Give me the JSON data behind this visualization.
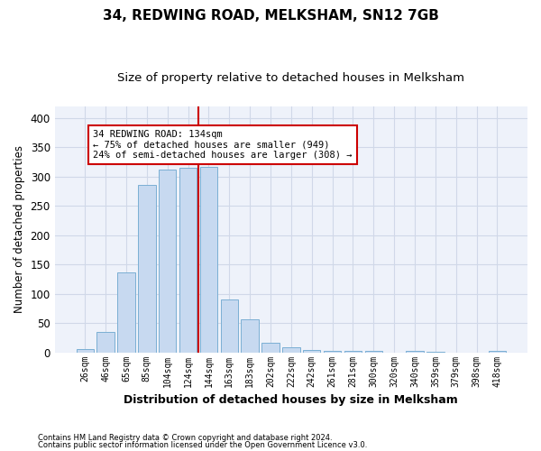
{
  "title": "34, REDWING ROAD, MELKSHAM, SN12 7GB",
  "subtitle": "Size of property relative to detached houses in Melksham",
  "xlabel": "Distribution of detached houses by size in Melksham",
  "ylabel": "Number of detached properties",
  "categories": [
    "26sqm",
    "46sqm",
    "65sqm",
    "85sqm",
    "104sqm",
    "124sqm",
    "144sqm",
    "163sqm",
    "183sqm",
    "202sqm",
    "222sqm",
    "242sqm",
    "261sqm",
    "281sqm",
    "300sqm",
    "320sqm",
    "340sqm",
    "359sqm",
    "379sqm",
    "398sqm",
    "418sqm"
  ],
  "values": [
    5,
    35,
    137,
    285,
    312,
    315,
    316,
    90,
    57,
    17,
    9,
    4,
    2,
    2,
    3,
    0,
    2,
    1,
    0,
    0,
    2
  ],
  "bar_color": "#c7d9f0",
  "bar_edge_color": "#7bafd4",
  "grid_color": "#d0d8e8",
  "background_color": "#eef2fa",
  "property_line_color": "#cc0000",
  "annotation_text": "34 REDWING ROAD: 134sqm\n← 75% of detached houses are smaller (949)\n24% of semi-detached houses are larger (308) →",
  "annotation_box_color": "#ffffff",
  "annotation_box_edge_color": "#cc0000",
  "ylim": [
    0,
    420
  ],
  "yticks": [
    0,
    50,
    100,
    150,
    200,
    250,
    300,
    350,
    400
  ],
  "footer_line1": "Contains HM Land Registry data © Crown copyright and database right 2024.",
  "footer_line2": "Contains public sector information licensed under the Open Government Licence v3.0."
}
